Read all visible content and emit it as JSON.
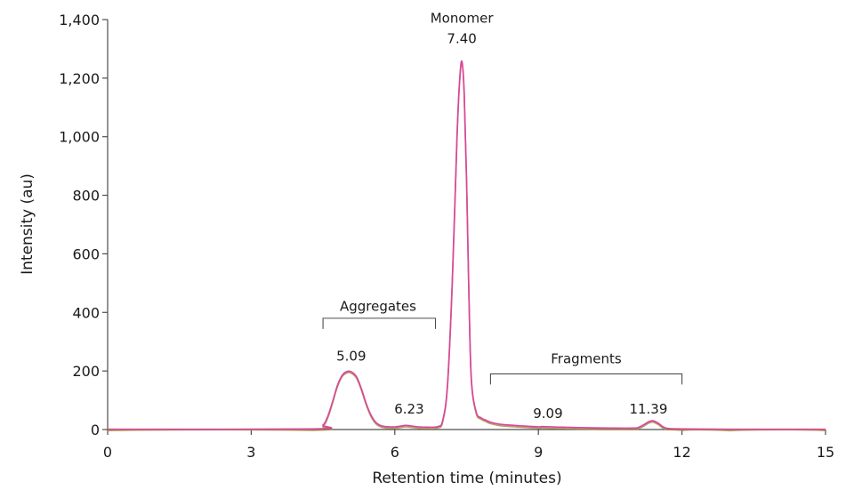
{
  "chart_data": {
    "type": "line",
    "title": "",
    "xlabel": "Retention time (minutes)",
    "ylabel": "Intensity (au)",
    "xlim": [
      0,
      15
    ],
    "ylim": [
      0,
      1400
    ],
    "x_ticks": [
      0,
      3,
      6,
      9,
      12,
      15
    ],
    "x_tick_labels": [
      "0",
      "3",
      "6",
      "9",
      "12",
      "15"
    ],
    "y_ticks": [
      0,
      200,
      400,
      600,
      800,
      1000,
      1200,
      1400
    ],
    "y_tick_labels": [
      "0",
      "200",
      "400",
      "600",
      "800",
      "1,000",
      "1,200",
      "1,400"
    ],
    "grid": false,
    "legend": "none",
    "colors": {
      "trace_main": "#d9479a",
      "trace_under": "#a08a3c",
      "axis": "#4d4d4d",
      "bracket": "#4d4d4d"
    },
    "series": [
      {
        "x": [
          0,
          4.3,
          4.5,
          4.6,
          4.7,
          4.8,
          4.9,
          5.0,
          5.09,
          5.2,
          5.3,
          5.4,
          5.5,
          5.6,
          5.7,
          5.8,
          5.9,
          6.0,
          6.1,
          6.23,
          6.35,
          6.5,
          6.7,
          6.9,
          7.0,
          7.1,
          7.2,
          7.3,
          7.35,
          7.4,
          7.45,
          7.5,
          7.55,
          7.6,
          7.7,
          7.8,
          7.9,
          8.0,
          8.2,
          8.5,
          9.0,
          9.09,
          9.5,
          10.0,
          10.5,
          11.0,
          11.1,
          11.2,
          11.3,
          11.39,
          11.5,
          11.6,
          11.7,
          12.0,
          13.0,
          15.0
        ],
        "y": [
          1,
          2,
          15,
          45,
          95,
          150,
          185,
          198,
          197,
          180,
          140,
          90,
          50,
          25,
          14,
          10,
          9,
          9,
          11,
          14,
          12,
          9,
          8,
          10,
          30,
          150,
          500,
          1000,
          1180,
          1258,
          1150,
          850,
          450,
          170,
          60,
          40,
          32,
          25,
          18,
          14,
          9,
          10,
          8,
          6,
          5,
          5,
          8,
          16,
          26,
          30,
          22,
          10,
          4,
          2,
          1,
          1
        ]
      }
    ],
    "annotations": [
      {
        "text": "Monomer",
        "x": 7.4,
        "y": 1390
      },
      {
        "text": "7.40",
        "x": 7.4,
        "y": 1320
      },
      {
        "text": "5.09",
        "x": 5.09,
        "y": 235
      },
      {
        "text": "6.23",
        "x": 6.3,
        "y": 55
      },
      {
        "text": "9.09",
        "x": 9.2,
        "y": 40
      },
      {
        "text": "11.39",
        "x": 11.3,
        "y": 55
      },
      {
        "text": "Aggregates",
        "x": 5.65,
        "y": 405
      }
    ],
    "brackets": [
      {
        "label": "Aggregates",
        "x_start": 4.5,
        "x_end": 6.85,
        "y": 380
      },
      {
        "label": "Fragments",
        "x_start": 8.0,
        "x_end": 12.0,
        "y": 190
      }
    ]
  }
}
